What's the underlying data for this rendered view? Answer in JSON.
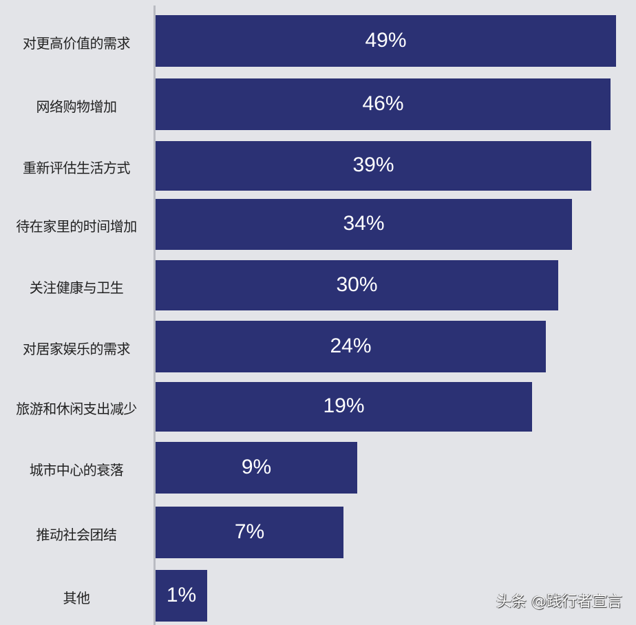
{
  "chart_data": {
    "type": "bar",
    "orientation": "horizontal",
    "categories": [
      "对更高价值的需求",
      "网络购物增加",
      "重新评估生活方式",
      "待在家里的时间增加",
      "关注健康与卫生",
      "对居家娱乐的需求",
      "旅游和休闲支出减少",
      "城市中心的衰落",
      "推动社会团结",
      "其他"
    ],
    "values": [
      49,
      46,
      39,
      34,
      30,
      24,
      19,
      9,
      7,
      1
    ],
    "data_labels": [
      "49%",
      "46%",
      "39%",
      "34%",
      "30%",
      "24%",
      "19%",
      "9%",
      "7%",
      "1%"
    ],
    "title": "",
    "xlabel": "",
    "ylabel": "",
    "grid": false,
    "colors": {
      "bar": "#2b3174",
      "background": "#e3e4e8",
      "data_label": "#ffffff"
    }
  },
  "watermark": "头条 @践行者宣言"
}
